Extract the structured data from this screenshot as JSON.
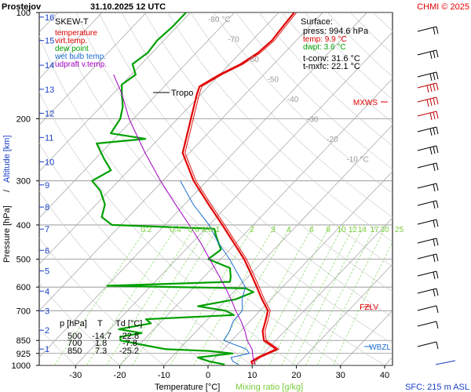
{
  "header": {
    "station": "Prostejov",
    "datetime": "31.10.2025 12 UTC",
    "credit": "CHMI © 2025"
  },
  "legend": {
    "title": "SKEW-T",
    "items": [
      {
        "label": "temperature",
        "color": "#e00000"
      },
      {
        "label": "virt.temp.",
        "color": "#e00000"
      },
      {
        "label": "dew point",
        "color": "#00a000"
      },
      {
        "label": "wet bulb temp.",
        "color": "#1e6fd0"
      },
      {
        "label": "udpraft v.temp.",
        "color": "#a000c0"
      }
    ]
  },
  "surface": {
    "title": "Surface:",
    "press": "press: 994.6 hPa",
    "temp": "temp: 9.9 °C",
    "dwpt": "dwpt: 3.6 °C",
    "tconv": "t-conv: 31.6 °C",
    "tmxfc": "t-mxfc: 22.1 °C"
  },
  "levels_table": {
    "header": [
      "p [hPa]",
      "T",
      "Td [°C]"
    ],
    "rows": [
      [
        "500",
        "-14.7",
        "-22.8"
      ],
      [
        "700",
        "1.8",
        "-7.8"
      ],
      [
        "850",
        "7.3",
        "-25.2"
      ]
    ]
  },
  "labels": {
    "tropo": "Tropo",
    "mxws": "MXWS",
    "fzlv": "FZLV",
    "wbzl": "WBZL",
    "sfc": "SFC: 215 m ASL"
  },
  "chart_data": {
    "type": "line",
    "xlabel": "Temperature [°C]",
    "xlabel2": "Mixing ratio [g/kg]",
    "ylabel": "Pressure [hPa]",
    "ylabel_sep": "/",
    "ylabel2": "Altitude [km]",
    "xlim": [
      -35,
      45
    ],
    "ylim": [
      1000,
      100
    ],
    "x_ticks": [
      "-30",
      "-20",
      "-10",
      "0",
      "10",
      "20",
      "30",
      "40"
    ],
    "x_tick_values": [
      -30,
      -20,
      -10,
      0,
      10,
      20,
      30,
      40
    ],
    "pressure_ticks": [
      "100",
      "200",
      "300",
      "400",
      "500",
      "600",
      "700",
      "850",
      "925",
      "1000"
    ],
    "pressure_tick_values": [
      100,
      200,
      300,
      400,
      500,
      600,
      700,
      850,
      925,
      1000
    ],
    "altitude_ticks": [
      "16",
      "15",
      "14",
      "13",
      "12",
      "11",
      "10",
      "9",
      "8",
      "7",
      "6",
      "5",
      "4",
      "3",
      "2",
      "1"
    ],
    "altitude_pressures": [
      103,
      120,
      141,
      165,
      193,
      226,
      265,
      308,
      356,
      411,
      472,
      540,
      616,
      701,
      795,
      899
    ],
    "isotherm_labels": [
      "-80 °C",
      "-70",
      "-60",
      "-50",
      "-40",
      "-30",
      "-20",
      "-10 °C"
    ],
    "isotherm_values": [
      -80,
      -70,
      -60,
      -50,
      -40,
      -30,
      -20,
      -10
    ],
    "mixing_ratio_labels": [
      "0.2",
      "0.4",
      "0.6",
      "0.8",
      "1",
      "2",
      "3",
      "4",
      "6",
      "8",
      "10",
      "12",
      "14",
      "17",
      "20",
      "25"
    ],
    "mixing_ratio_values": [
      0.2,
      0.4,
      0.6,
      0.8,
      1,
      2,
      3,
      4,
      6,
      8,
      10,
      12,
      14,
      17,
      20,
      25
    ],
    "series": [
      {
        "name": "temperature",
        "color": "#e00000",
        "points": [
          [
            994.6,
            9.9
          ],
          [
            975,
            9.0
          ],
          [
            950,
            9.6
          ],
          [
            925,
            10.8
          ],
          [
            900,
            12.0
          ],
          [
            850,
            7.3
          ],
          [
            800,
            5.0
          ],
          [
            750,
            3.5
          ],
          [
            700,
            1.8
          ],
          [
            650,
            -2.0
          ],
          [
            600,
            -5.8
          ],
          [
            550,
            -10.0
          ],
          [
            500,
            -14.7
          ],
          [
            450,
            -20.5
          ],
          [
            400,
            -27.0
          ],
          [
            350,
            -34.5
          ],
          [
            300,
            -43.0
          ],
          [
            250,
            -51.5
          ],
          [
            200,
            -57.0
          ],
          [
            170,
            -61.0
          ],
          [
            162,
            -62.0
          ],
          [
            150,
            -60.0
          ],
          [
            140,
            -57.5
          ],
          [
            130,
            -56.0
          ],
          [
            120,
            -55.5
          ],
          [
            110,
            -56.0
          ],
          [
            100,
            -56.5
          ]
        ]
      },
      {
        "name": "dew point",
        "color": "#00a000",
        "points": [
          [
            994.6,
            3.6
          ],
          [
            975,
            -0.5
          ],
          [
            950,
            -4.0
          ],
          [
            925,
            3.0
          ],
          [
            910,
            -3.0
          ],
          [
            900,
            -13.0
          ],
          [
            880,
            -18.0
          ],
          [
            850,
            -25.2
          ],
          [
            830,
            -26.0
          ],
          [
            810,
            -22.0
          ],
          [
            790,
            -28.0
          ],
          [
            760,
            -22.0
          ],
          [
            740,
            -24.0
          ],
          [
            720,
            -5.0
          ],
          [
            700,
            -7.8
          ],
          [
            680,
            -15.0
          ],
          [
            650,
            -8.0
          ],
          [
            620,
            -5.5
          ],
          [
            605,
            -8.0
          ],
          [
            595,
            -40.0
          ],
          [
            580,
            -13.0
          ],
          [
            560,
            -14.0
          ],
          [
            530,
            -16.0
          ],
          [
            500,
            -22.8
          ],
          [
            470,
            -22.0
          ],
          [
            430,
            -26.0
          ],
          [
            410,
            -28.0
          ],
          [
            400,
            -52.0
          ],
          [
            380,
            -56.0
          ],
          [
            350,
            -58.0
          ],
          [
            320,
            -62.0
          ],
          [
            300,
            -66.0
          ],
          [
            280,
            -64.0
          ],
          [
            260,
            -68.0
          ],
          [
            235,
            -73.0
          ],
          [
            228,
            -63.0
          ],
          [
            220,
            -72.0
          ],
          [
            200,
            -73.0
          ],
          [
            185,
            -75.0
          ],
          [
            170,
            -78.0
          ],
          [
            160,
            -80.0
          ],
          [
            150,
            -79.0
          ],
          [
            140,
            -82.0
          ],
          [
            130,
            -81.0
          ],
          [
            120,
            -81.5
          ],
          [
            110,
            -81.0
          ],
          [
            100,
            -81.0
          ]
        ]
      },
      {
        "name": "wet bulb temp.",
        "color": "#1e6fd0",
        "points": [
          [
            994.6,
            6.8
          ],
          [
            975,
            4.8
          ],
          [
            950,
            3.5
          ],
          [
            925,
            6.8
          ],
          [
            900,
            5.2
          ],
          [
            850,
            -1.8
          ],
          [
            800,
            -2.5
          ],
          [
            750,
            -3.8
          ],
          [
            700,
            -4.0
          ],
          [
            650,
            -6.5
          ],
          [
            600,
            -8.4
          ],
          [
            550,
            -13.0
          ],
          [
            500,
            -18.0
          ],
          [
            450,
            -24.0
          ],
          [
            400,
            -30.0
          ],
          [
            350,
            -38.0
          ],
          [
            300,
            -46.0
          ]
        ]
      },
      {
        "name": "udpraft v.temp.",
        "color": "#a000c0",
        "points": [
          [
            994.6,
            10.5
          ],
          [
            950,
            8.5
          ],
          [
            900,
            6.5
          ],
          [
            850,
            3.5
          ],
          [
            800,
            1.0
          ],
          [
            750,
            -2.0
          ],
          [
            700,
            -5.5
          ],
          [
            650,
            -9.0
          ],
          [
            600,
            -13.0
          ],
          [
            550,
            -17.5
          ],
          [
            500,
            -22.5
          ],
          [
            450,
            -28.0
          ],
          [
            400,
            -34.5
          ],
          [
            350,
            -42.0
          ],
          [
            300,
            -50.5
          ],
          [
            250,
            -60.0
          ],
          [
            200,
            -71.0
          ],
          [
            170,
            -78.0
          ],
          [
            150,
            -84.0
          ]
        ]
      }
    ]
  }
}
